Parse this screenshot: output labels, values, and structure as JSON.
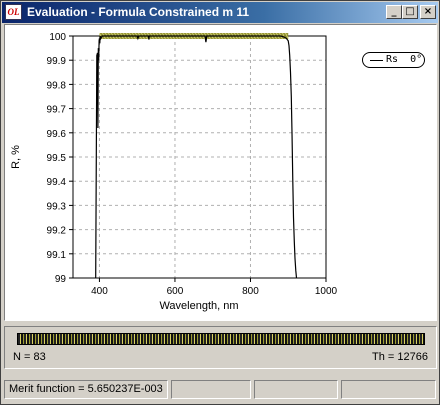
{
  "window": {
    "app_icon": "OL",
    "title": "Evaluation - Formula Constrained m 11",
    "buttons": {
      "minimize": "_",
      "maximize": "□",
      "close": "×"
    }
  },
  "chart_data": {
    "type": "line",
    "xlabel": "Wavelength, nm",
    "ylabel": "R, %",
    "xlim": [
      330,
      1000
    ],
    "ylim": [
      99,
      100
    ],
    "xticks": [
      "400",
      "600",
      "800",
      "1000"
    ],
    "yticks": [
      "100",
      "99.9",
      "99.8",
      "99.7",
      "99.6",
      "99.5",
      "99.4",
      "99.3",
      "99.2",
      "99.1",
      "99"
    ],
    "grid": true,
    "legend": "top-right",
    "target_band": {
      "color": "#8a8a20",
      "x": [
        400,
        900
      ],
      "y": 100
    },
    "series": [
      {
        "name": "Rs  0°",
        "color": "#000000",
        "x": [
          390,
          393,
          395,
          396,
          397,
          398,
          399,
          400,
          401,
          402,
          404,
          407,
          410,
          450,
          500,
          502,
          504,
          520,
          530,
          531,
          532,
          533,
          600,
          680,
          681,
          682,
          683,
          684,
          700,
          800,
          880,
          890,
          895,
          900,
          902,
          904,
          906,
          908,
          910,
          912,
          914,
          916,
          918,
          920,
          922
        ],
        "y": [
          99,
          99.92,
          99.93,
          99.62,
          99.95,
          99.9,
          99.98,
          99.99,
          99.97,
          100,
          99.99,
          100,
          100,
          100,
          100,
          99.99,
          100,
          100,
          100,
          99.985,
          100,
          100,
          100,
          100,
          99.985,
          99.975,
          99.985,
          100,
          100,
          100,
          100,
          99.995,
          99.99,
          99.98,
          99.96,
          99.92,
          99.85,
          99.75,
          99.6,
          99.4,
          99.25,
          99.15,
          99.08,
          99.03,
          99
        ]
      }
    ]
  },
  "thickness": {
    "n_label": "N = 83",
    "th_label": "Th = 12766"
  },
  "status": {
    "merit": "Merit function =  5.650237E-003"
  }
}
